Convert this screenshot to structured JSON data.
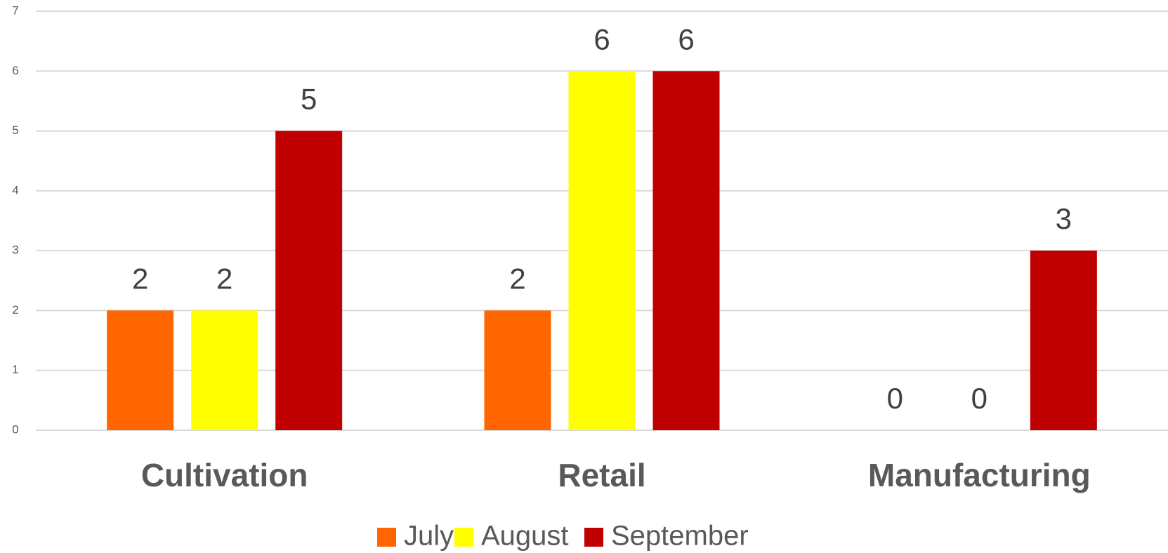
{
  "chart_data": {
    "type": "bar",
    "categories": [
      "Cultivation",
      "Retail",
      "Manufacturing"
    ],
    "series": [
      {
        "name": "July",
        "color": "#ff6600",
        "values": [
          2,
          2,
          0
        ]
      },
      {
        "name": "August",
        "color": "#ffff00",
        "values": [
          2,
          6,
          0
        ]
      },
      {
        "name": "September",
        "color": "#c00000",
        "values": [
          5,
          6,
          3
        ]
      }
    ],
    "ylim": [
      0,
      7
    ],
    "yticks": [
      0,
      1,
      2,
      3,
      4,
      5,
      6,
      7
    ],
    "grid": true,
    "legend": "bottom"
  }
}
